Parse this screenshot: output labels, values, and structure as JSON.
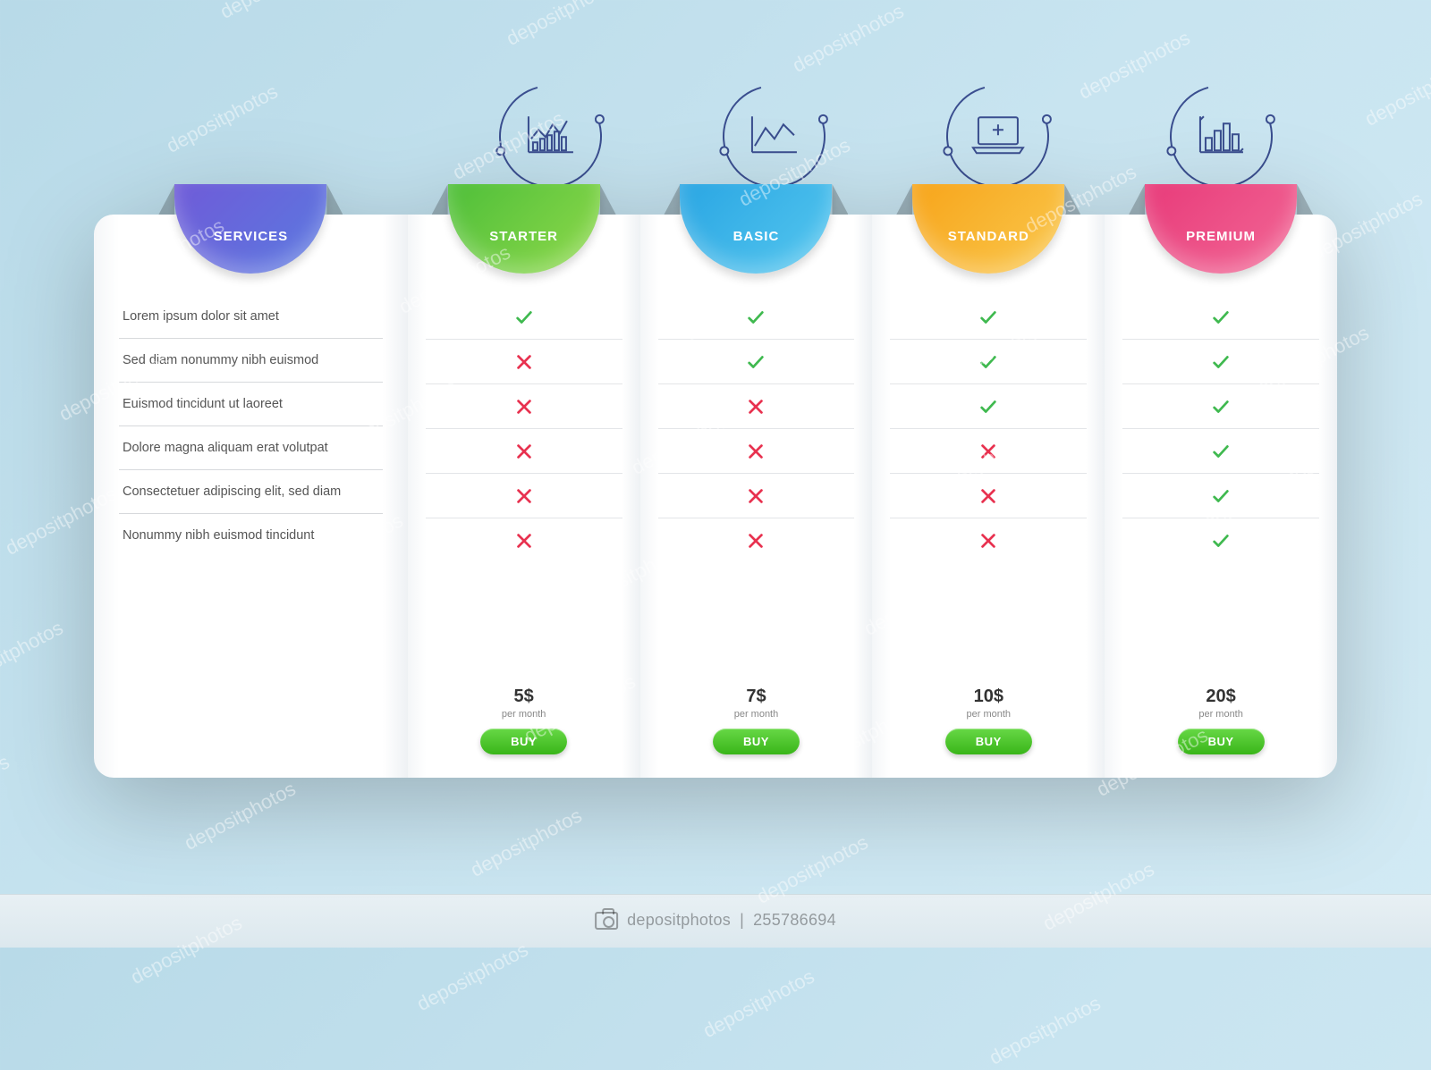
{
  "background": {
    "gradient_from": "#b8dae8",
    "gradient_to": "#d2eaf4",
    "ground": "#e8f0f4"
  },
  "watermark": {
    "brand": "depositphotos",
    "id": "255786694",
    "overlay_text": "depositphotos"
  },
  "icon_color": "#3a4e8f",
  "check_color": "#3fb94f",
  "cross_color": "#e8314f",
  "buy_label": "Buy",
  "per_label": "per month",
  "services": {
    "title": "Services",
    "tab_gradient": [
      "#6f5bd8",
      "#5a7ae0"
    ],
    "features": [
      "Lorem ipsum dolor sit amet",
      "Sed diam nonummy nibh euismod",
      "Euismod tincidunt ut laoreet",
      "Dolore magna aliquam erat volutpat",
      "Consectetuer adipiscing elit, sed diam",
      "Nonummy nibh euismod tincidunt"
    ]
  },
  "plans": [
    {
      "key": "starter",
      "title": "Starter",
      "tab_gradient": [
        "#4fbf3a",
        "#8fd94a"
      ],
      "price": "5$",
      "icon": "infograph",
      "marks": [
        true,
        false,
        false,
        false,
        false,
        false
      ]
    },
    {
      "key": "basic",
      "title": "Basic",
      "tab_gradient": [
        "#2aa6e3",
        "#55c7ef"
      ],
      "price": "7$",
      "icon": "line-chart",
      "marks": [
        true,
        true,
        false,
        false,
        false,
        false
      ]
    },
    {
      "key": "standard",
      "title": "Standard",
      "tab_gradient": [
        "#f7a51b",
        "#fac84d"
      ],
      "price": "10$",
      "icon": "medical-laptop",
      "marks": [
        true,
        true,
        true,
        false,
        false,
        false
      ]
    },
    {
      "key": "premium",
      "title": "Premium",
      "tab_gradient": [
        "#e83b7a",
        "#f26896"
      ],
      "price": "20$",
      "icon": "bar-growth",
      "marks": [
        true,
        true,
        true,
        true,
        true,
        true
      ]
    }
  ]
}
